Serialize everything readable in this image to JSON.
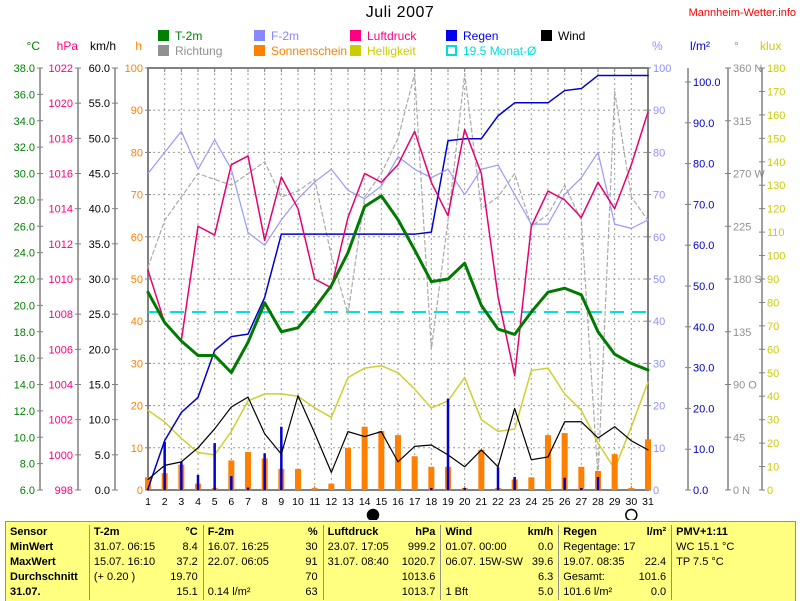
{
  "header": {
    "title": "Juli 2007",
    "site": "Mannheim-Wetter.info"
  },
  "legend": {
    "row1": [
      {
        "label": "T-2m",
        "color": "#008000"
      },
      {
        "label": "F-2m",
        "color": "#8888FF"
      },
      {
        "label": "Luftdruck",
        "color": "#FF0080"
      },
      {
        "label": "Regen",
        "color": "#0000EE"
      },
      {
        "label": "Wind",
        "color": "#000000"
      }
    ],
    "row2": [
      {
        "label": "Richtung",
        "color": "#909090"
      },
      {
        "label": "Sonnenschein",
        "color": "#FF8000"
      },
      {
        "label": "Helligkeit",
        "color": "#CCCC00"
      },
      {
        "label": "19.5 Monat-Ø",
        "color": "#00DDDD",
        "open": true
      }
    ]
  },
  "axis_headers": {
    "left": [
      {
        "label": "°C",
        "color": "#008000"
      },
      {
        "label": "hPa",
        "color": "#FF0080"
      },
      {
        "label": "km/h",
        "color": "#000000"
      },
      {
        "label": "h",
        "color": "#FF8000"
      }
    ],
    "right": [
      {
        "label": "%",
        "color": "#9090FF"
      },
      {
        "label": "l/m²",
        "color": "#0000CC"
      },
      {
        "label": "°",
        "color": "#909090"
      },
      {
        "label": "klux",
        "color": "#CCCC00"
      }
    ]
  },
  "chart_data": {
    "type": "line",
    "title": "Juli 2007",
    "x_categories": [
      1,
      2,
      3,
      4,
      5,
      6,
      7,
      8,
      9,
      10,
      11,
      12,
      13,
      14,
      15,
      16,
      17,
      18,
      19,
      20,
      21,
      22,
      23,
      24,
      25,
      26,
      27,
      28,
      29,
      30,
      31
    ],
    "grid": true,
    "axes": {
      "C": {
        "label": "°C",
        "color": "#008000",
        "min": 6,
        "max": 38,
        "ticks": [
          "38.0",
          "36.0",
          "34.0",
          "32.0",
          "30.0",
          "28.0",
          "26.0",
          "24.0",
          "22.0",
          "20.0",
          "18.0",
          "16.0",
          "14.0",
          "12.0",
          "10.0",
          "8.0",
          "6.0"
        ]
      },
      "hPa": {
        "label": "hPa",
        "color": "#FF0080",
        "min": 998,
        "max": 1022,
        "ticks": [
          "1022",
          "1020",
          "1018",
          "1016",
          "1014",
          "1012",
          "1010",
          "1008",
          "1006",
          "1004",
          "1002",
          "1000",
          "998"
        ]
      },
      "kmh": {
        "label": "km/h",
        "color": "#000000",
        "min": 0,
        "max": 60,
        "ticks": [
          "60.0",
          "55.0",
          "50.0",
          "45.0",
          "40.0",
          "35.0",
          "30.0",
          "25.0",
          "20.0",
          "15.0",
          "10.0",
          "5.0",
          "0.0"
        ]
      },
      "h": {
        "label": "h",
        "color": "#FF8000",
        "min": 0,
        "max": 100,
        "ticks": [
          "100",
          "90",
          "80",
          "70",
          "60",
          "50",
          "40",
          "30",
          "20",
          "10",
          "0"
        ]
      },
      "pct": {
        "label": "%",
        "color": "#9090FF",
        "min": 0,
        "max": 100,
        "ticks": [
          "100",
          "90",
          "80",
          "70",
          "60",
          "50",
          "40",
          "30",
          "20",
          "10",
          "0"
        ]
      },
      "lm2": {
        "label": "l/m²",
        "color": "#0000CC",
        "min": 0,
        "max": 100,
        "ticks": [
          "100.0",
          "90.0",
          "80.0",
          "70.0",
          "60.0",
          "50.0",
          "40.0",
          "30.0",
          "20.0",
          "10.0",
          "0.0"
        ]
      },
      "deg": {
        "label": "°",
        "color": "#909090",
        "min": 0,
        "max": 360,
        "ticks": [
          "360 N",
          "315",
          "270 W",
          "225",
          "180 S",
          "135",
          "90 O",
          "45",
          "0 N"
        ]
      },
      "klux": {
        "label": "klux",
        "color": "#CCCC00",
        "min": 0,
        "max": 180,
        "ticks": [
          "180",
          "170",
          "160",
          "150",
          "140",
          "130",
          "120",
          "110",
          "100",
          "90",
          "80",
          "70",
          "60",
          "50",
          "40",
          "30",
          "20",
          "10",
          "0"
        ]
      }
    },
    "series": [
      {
        "name": "Richtung",
        "axis": "deg",
        "color": "#AAAAAA",
        "type": "line",
        "width": 1.2,
        "dash": "4,3",
        "values": [
          190,
          230,
          250,
          270,
          265,
          260,
          270,
          280,
          250,
          255,
          265,
          200,
          150,
          250,
          270,
          300,
          355,
          120,
          230,
          355,
          240,
          250,
          270,
          225,
          235,
          260,
          230,
          10,
          340,
          250,
          230
        ]
      },
      {
        "name": "Helligkeit",
        "axis": "klux",
        "color": "#CFCF30",
        "type": "line",
        "width": 1.5,
        "values": [
          34,
          29,
          22,
          16,
          15,
          25,
          38,
          41,
          41,
          40,
          35,
          31,
          48,
          52,
          53,
          50,
          43,
          35,
          38,
          48,
          30,
          25,
          26,
          51,
          52,
          41,
          34,
          20,
          9,
          27,
          46
        ]
      },
      {
        "name": "Sonnenschein",
        "axis": "h",
        "color": "#FF8000",
        "type": "bars",
        "values": [
          3,
          4,
          6,
          1.5,
          0.5,
          7,
          9,
          7.5,
          5,
          5,
          0.5,
          1.5,
          10,
          15,
          14,
          13,
          8,
          5.5,
          5.5,
          0.5,
          9.5,
          0.5,
          2.5,
          3,
          13,
          13.5,
          5.5,
          4.5,
          8.5,
          0.5,
          12
        ]
      },
      {
        "name": "Regen",
        "axis": "lm2",
        "color": "#0000D0",
        "type": "spikes",
        "values": [
          0.3,
          11.8,
          6.9,
          3.7,
          11.5,
          3.4,
          0.6,
          9.0,
          15.5,
          0,
          0,
          0,
          0,
          0,
          0,
          0,
          0,
          0.5,
          22.4,
          0.5,
          0,
          5.6,
          3.2,
          0,
          0,
          3.0,
          0.5,
          3.2,
          0,
          0,
          0
        ]
      },
      {
        "name": "Regen-Summe",
        "axis": "lm2",
        "color": "#0000D0",
        "type": "line",
        "width": 1.5,
        "values": [
          0.3,
          12.1,
          19.0,
          22.7,
          34.2,
          37.6,
          38.2,
          47.2,
          62.7,
          62.7,
          62.7,
          62.7,
          62.7,
          62.7,
          62.7,
          62.7,
          62.7,
          63.2,
          85.6,
          86.1,
          86.1,
          91.7,
          94.9,
          94.9,
          94.9,
          97.9,
          98.4,
          101.6,
          101.6,
          101.6,
          101.6
        ]
      },
      {
        "name": "Wind",
        "axis": "kmh",
        "color": "#000000",
        "type": "line",
        "width": 1.2,
        "values": [
          1.5,
          3.5,
          4.0,
          6.0,
          8.7,
          11.8,
          13.2,
          8.0,
          5.1,
          13.4,
          8.1,
          2.5,
          8.3,
          7.6,
          8.3,
          4.0,
          6.2,
          6.4,
          5.0,
          3.3,
          5.7,
          3.3,
          11.6,
          4.3,
          4.7,
          9.7,
          9.7,
          7.4,
          9.0,
          7.0,
          5.7
        ]
      },
      {
        "name": "F-2m",
        "axis": "pct",
        "color": "#9999FF",
        "type": "line",
        "width": 1.2,
        "values": [
          75,
          80,
          85,
          76,
          83,
          76,
          61,
          58,
          64,
          69,
          73,
          76,
          71,
          69,
          72,
          79,
          76,
          74,
          76,
          70,
          76,
          77,
          70,
          63,
          63,
          70,
          74,
          80,
          63,
          62,
          64
        ]
      },
      {
        "name": "Luftdruck",
        "axis": "hPa",
        "color": "#E8006E",
        "type": "line",
        "width": 1.5,
        "values": [
          1010.5,
          1007.5,
          1006.5,
          1013.0,
          1012.5,
          1016.5,
          1017.0,
          1012.2,
          1015.8,
          1014.0,
          1010.0,
          1009.5,
          1013.5,
          1016.0,
          1015.5,
          1016.5,
          1018.4,
          1015.5,
          1013.6,
          1018.5,
          1016.0,
          1009.0,
          1004.5,
          1013.0,
          1015.0,
          1014.5,
          1013.5,
          1015.5,
          1014.0,
          1016.5,
          1019.5
        ]
      },
      {
        "name": "T-2m",
        "axis": "C",
        "color": "#007A00",
        "type": "line",
        "width": 3,
        "values": [
          21.0,
          18.7,
          17.3,
          16.2,
          16.2,
          14.9,
          17.2,
          20.2,
          18.0,
          18.3,
          19.8,
          21.5,
          24.0,
          27.5,
          28.3,
          26.5,
          24.2,
          21.8,
          22.0,
          23.2,
          20.0,
          18.2,
          17.8,
          19.5,
          21.0,
          21.3,
          20.8,
          18.0,
          16.3,
          15.6,
          15.1
        ]
      }
    ],
    "annotations": {
      "monthly_avg": {
        "label": "19.5 Monat-Ø",
        "value": 19.5,
        "axis": "C",
        "color": "#00E0E0"
      },
      "moons": [
        {
          "day": 14.5,
          "symbol": "new-moon"
        },
        {
          "day": 30,
          "symbol": "full-moon"
        }
      ]
    }
  },
  "table": {
    "rows": [
      {
        "bold": true,
        "cells": [
          [
            "Sensor",
            ""
          ],
          [
            "T-2m",
            "°C"
          ],
          [
            "F-2m",
            "%"
          ],
          [
            "Luftdruck",
            "hPa"
          ],
          [
            "Wind",
            "km/h"
          ],
          [
            "Regen",
            "l/m²"
          ],
          [
            "PMV+1:11",
            ""
          ]
        ]
      },
      {
        "cells": [
          [
            "MinWert",
            ""
          ],
          [
            "31.07.  06:15",
            "8.4"
          ],
          [
            "16.07.  16:25",
            "30"
          ],
          [
            "23.07.  17:05",
            "999.2"
          ],
          [
            "01.07.  00:00",
            "0.0"
          ],
          [
            "Regentage: 17",
            ""
          ],
          [
            "WC 15.1 °C",
            ""
          ]
        ]
      },
      {
        "cells": [
          [
            "MaxWert",
            ""
          ],
          [
            "15.07.  16:10",
            "37.2"
          ],
          [
            "22.07.  06:05",
            "91"
          ],
          [
            "31.07.  08:40",
            "1020.7"
          ],
          [
            "06.07.  15W-SW",
            "39.6"
          ],
          [
            "19.07.  08:35",
            "22.4"
          ],
          [
            "TP 7.5 °C",
            ""
          ]
        ]
      },
      {
        "cells": [
          [
            "Durchschnitt",
            ""
          ],
          [
            "(+ 0.20 )",
            "19.70"
          ],
          [
            "",
            "70"
          ],
          [
            "",
            "1013.6"
          ],
          [
            "",
            "6.3"
          ],
          [
            "Gesamt:",
            "101.6"
          ],
          [
            "",
            ""
          ]
        ]
      },
      {
        "cells": [
          [
            "31.07.",
            ""
          ],
          [
            "",
            "15.1"
          ],
          [
            "0.14 l/m²",
            "63"
          ],
          [
            "",
            "1013.7"
          ],
          [
            "1 Bft",
            "5.0"
          ],
          [
            "101.6 l/m²",
            "0.0"
          ],
          [
            "",
            ""
          ]
        ]
      }
    ]
  }
}
